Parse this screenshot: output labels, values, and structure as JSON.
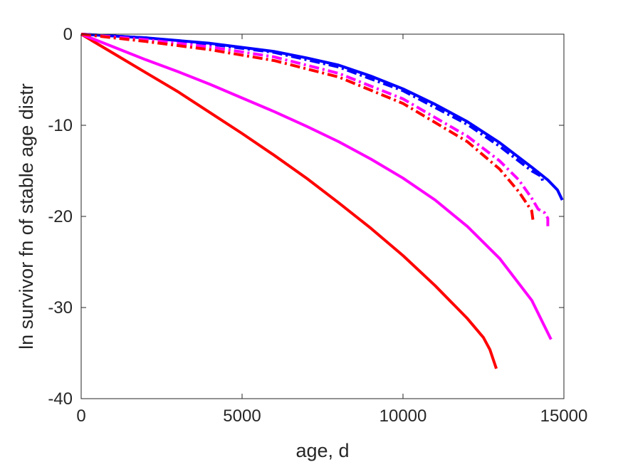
{
  "chart_data": {
    "type": "line",
    "title": "",
    "xlabel": "age, d",
    "ylabel": "ln survivor fn of stable age distr",
    "xlim": [
      0,
      15000
    ],
    "ylim": [
      -40,
      0
    ],
    "xticks": [
      0,
      5000,
      10000,
      15000
    ],
    "yticks": [
      -40,
      -30,
      -20,
      -10,
      0
    ],
    "xtick_labels": [
      "0",
      "5000",
      "10000",
      "15000"
    ],
    "ytick_labels": [
      "-40",
      "-30",
      "-20",
      "-10",
      "0"
    ],
    "grid": false,
    "legend": "none",
    "series": [
      {
        "color": "#ff0000",
        "style": "solid",
        "x": [
          0,
          1000,
          2000,
          3000,
          4000,
          5000,
          6000,
          7000,
          8000,
          9000,
          10000,
          11000,
          12000,
          12500,
          12700,
          12900
        ],
        "y": [
          0,
          -2.1,
          -4.2,
          -6.3,
          -8.6,
          -10.9,
          -13.3,
          -15.8,
          -18.5,
          -21.3,
          -24.3,
          -27.6,
          -31.2,
          -33.3,
          -34.6,
          -36.7
        ]
      },
      {
        "color": "#ff00ff",
        "style": "solid",
        "x": [
          0,
          1000,
          2000,
          3000,
          4000,
          5000,
          6000,
          7000,
          8000,
          9000,
          10000,
          11000,
          12000,
          13000,
          14000,
          14600
        ],
        "y": [
          0,
          -1.4,
          -2.8,
          -4.1,
          -5.5,
          -7.0,
          -8.5,
          -10.1,
          -11.8,
          -13.7,
          -15.8,
          -18.2,
          -21.1,
          -24.6,
          -29.2,
          -33.5
        ]
      },
      {
        "color": "#0000ff",
        "style": "solid",
        "x": [
          0,
          2000,
          4000,
          6000,
          7000,
          8000,
          9000,
          10000,
          11000,
          12000,
          13000,
          14000,
          14500,
          14800,
          14950
        ],
        "y": [
          0,
          -0.4,
          -1.0,
          -1.9,
          -2.6,
          -3.4,
          -4.6,
          -6.0,
          -7.7,
          -9.6,
          -11.9,
          -14.6,
          -16.0,
          -17.1,
          -18.2
        ]
      },
      {
        "color": "#0000ff",
        "style": "dashdot",
        "x": [
          0,
          2000,
          4000,
          6000,
          8000,
          10000,
          12000,
          13000,
          14000,
          14300,
          14350
        ],
        "y": [
          0,
          -0.4,
          -1.1,
          -2.0,
          -3.6,
          -6.2,
          -9.9,
          -12.3,
          -15.0,
          -15.6,
          -16.2
        ]
      },
      {
        "color": "#ff00ff",
        "style": "dashdot",
        "x": [
          0,
          2000,
          4000,
          6000,
          8000,
          10000,
          12000,
          13000,
          13600,
          14000,
          14200,
          14400,
          14500,
          14500
        ],
        "y": [
          0,
          -0.6,
          -1.4,
          -2.5,
          -4.3,
          -7.1,
          -11.2,
          -13.9,
          -16.0,
          -18.0,
          -19.2,
          -19.6,
          -20.2,
          -21.2
        ]
      },
      {
        "color": "#ff0000",
        "style": "dashdot",
        "x": [
          0,
          2000,
          4000,
          6000,
          8000,
          10000,
          12000,
          13000,
          13600,
          14000,
          14050
        ],
        "y": [
          0,
          -0.8,
          -1.7,
          -2.9,
          -4.7,
          -7.6,
          -11.8,
          -14.8,
          -17.3,
          -19.4,
          -20.7
        ]
      }
    ]
  }
}
